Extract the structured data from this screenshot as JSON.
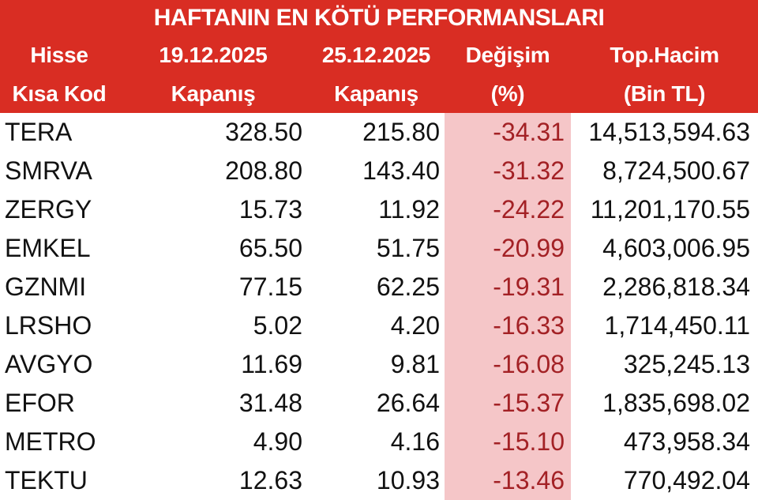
{
  "title": "HAFTANIN EN KÖTÜ PERFORMANSLARI",
  "chart_data": {
    "type": "table",
    "title": "HAFTANIN EN KÖTÜ PERFORMANSLARI",
    "columns": [
      {
        "line1": "Hisse",
        "line2": "Kısa Kod"
      },
      {
        "line1": "19.12.2025",
        "line2": "Kapanış"
      },
      {
        "line1": "25.12.2025",
        "line2": "Kapanış"
      },
      {
        "line1": "Değişim",
        "line2": "(%)"
      },
      {
        "line1": "Top.Hacim",
        "line2": "(Bin TL)"
      }
    ],
    "rows": [
      {
        "code": "TERA",
        "close_19_12_2025": "328.50",
        "close_25_12_2025": "215.80",
        "change_pct": "-34.31",
        "total_volume_bin_tl": "14,513,594.63"
      },
      {
        "code": "SMRVA",
        "close_19_12_2025": "208.80",
        "close_25_12_2025": "143.40",
        "change_pct": "-31.32",
        "total_volume_bin_tl": "8,724,500.67"
      },
      {
        "code": "ZERGY",
        "close_19_12_2025": "15.73",
        "close_25_12_2025": "11.92",
        "change_pct": "-24.22",
        "total_volume_bin_tl": "11,201,170.55"
      },
      {
        "code": "EMKEL",
        "close_19_12_2025": "65.50",
        "close_25_12_2025": "51.75",
        "change_pct": "-20.99",
        "total_volume_bin_tl": "4,603,006.95"
      },
      {
        "code": "GZNMI",
        "close_19_12_2025": "77.15",
        "close_25_12_2025": "62.25",
        "change_pct": "-19.31",
        "total_volume_bin_tl": "2,286,818.34"
      },
      {
        "code": "LRSHO",
        "close_19_12_2025": "5.02",
        "close_25_12_2025": "4.20",
        "change_pct": "-16.33",
        "total_volume_bin_tl": "1,714,450.11"
      },
      {
        "code": "AVGYO",
        "close_19_12_2025": "11.69",
        "close_25_12_2025": "9.81",
        "change_pct": "-16.08",
        "total_volume_bin_tl": "325,245.13"
      },
      {
        "code": "EFOR",
        "close_19_12_2025": "31.48",
        "close_25_12_2025": "26.64",
        "change_pct": "-15.37",
        "total_volume_bin_tl": "1,835,698.02"
      },
      {
        "code": "METRO",
        "close_19_12_2025": "4.90",
        "close_25_12_2025": "4.16",
        "change_pct": "-15.10",
        "total_volume_bin_tl": "473,958.34"
      },
      {
        "code": "TEKTU",
        "close_19_12_2025": "12.63",
        "close_25_12_2025": "10.93",
        "change_pct": "-13.46",
        "total_volume_bin_tl": "770,492.04"
      }
    ]
  },
  "colors": {
    "header_background_red": "#d92d23",
    "change_column_background_pink": "#f5c6c8",
    "change_text_dark_red": "#a32125",
    "body_text_black": "#111111",
    "header_text_white": "#ffffff"
  }
}
